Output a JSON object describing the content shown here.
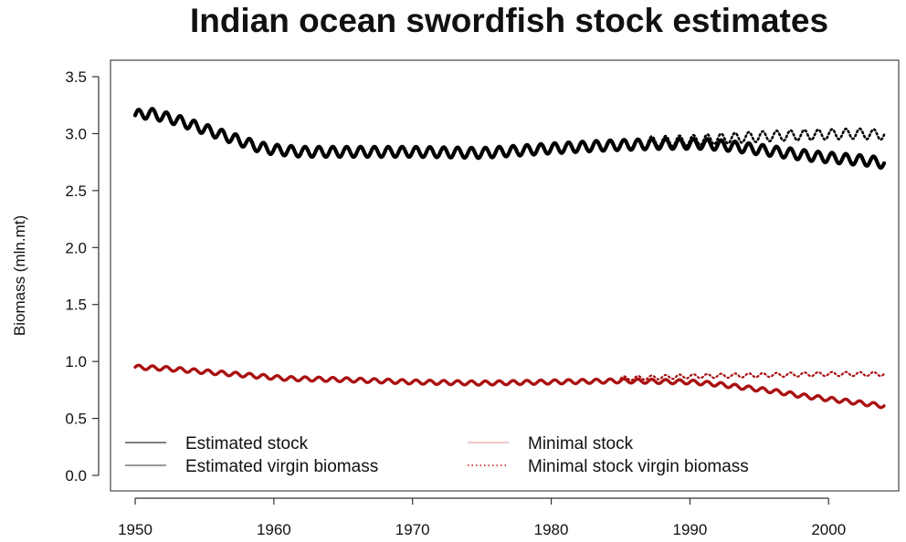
{
  "chart_data": {
    "type": "line",
    "title": "Indian ocean swordfish stock estimates",
    "xlabel": "",
    "ylabel": "Biomass (mln.mt)",
    "xlim": [
      1950,
      2004
    ],
    "ylim": [
      0.0,
      3.5
    ],
    "x_ticks": [
      1950,
      1960,
      1970,
      1980,
      1990,
      2000
    ],
    "y_ticks": [
      "0.0",
      "0.5",
      "1.0",
      "1.5",
      "2.0",
      "2.5",
      "3.0",
      "3.5"
    ],
    "grid": false,
    "legend_position": "bottom",
    "oscillation": {
      "amplitude_upper": 0.045,
      "amplitude_lower": 0.018,
      "cycles_per_year": 1
    },
    "series": [
      {
        "name": "Estimated stock",
        "color": "#000000",
        "style": "solid",
        "x": [
          1950,
          1951,
          1952,
          1953,
          1954,
          1955,
          1956,
          1957,
          1958,
          1959,
          1960,
          1962,
          1965,
          1970,
          1975,
          1980,
          1983,
          1985,
          1988,
          1991,
          1993,
          1995,
          1997,
          1999,
          2001,
          2003,
          2004
        ],
        "y": [
          3.16,
          3.18,
          3.15,
          3.12,
          3.08,
          3.04,
          3.0,
          2.96,
          2.92,
          2.88,
          2.86,
          2.84,
          2.84,
          2.84,
          2.83,
          2.87,
          2.89,
          2.9,
          2.91,
          2.91,
          2.89,
          2.86,
          2.83,
          2.8,
          2.78,
          2.76,
          2.74
        ]
      },
      {
        "name": "Estimated virgin biomass",
        "color": "#000000",
        "style": "dotted",
        "x": [
          1987,
          1990,
          1993,
          1996,
          1999,
          2002,
          2004
        ],
        "y": [
          2.93,
          2.94,
          2.96,
          2.98,
          2.99,
          3.0,
          2.99
        ]
      },
      {
        "name": "Minimal stock",
        "color": "#aa1111",
        "style": "solid",
        "x": [
          1950,
          1952,
          1955,
          1958,
          1961,
          1965,
          1970,
          1975,
          1980,
          1985,
          1990,
          1992,
          1994,
          1996,
          1998,
          2000,
          2002,
          2004
        ],
        "y": [
          0.95,
          0.94,
          0.91,
          0.88,
          0.85,
          0.84,
          0.82,
          0.81,
          0.82,
          0.83,
          0.82,
          0.8,
          0.77,
          0.74,
          0.7,
          0.67,
          0.64,
          0.61
        ]
      },
      {
        "name": "Minimal stock virgin biomass",
        "color": "#aa1111",
        "style": "dotted",
        "x": [
          1985,
          1990,
          1995,
          2000,
          2004
        ],
        "y": [
          0.85,
          0.87,
          0.88,
          0.89,
          0.89
        ]
      }
    ],
    "legend": [
      {
        "label": "Estimated stock",
        "color": "#555555",
        "style": "solid"
      },
      {
        "label": "Estimated virgin biomass",
        "color": "#777777",
        "style": "solid"
      },
      {
        "label": "Minimal stock",
        "color": "#e8b4b4",
        "style": "solid"
      },
      {
        "label": "Minimal stock virgin biomass",
        "color": "#cc3333",
        "style": "dotted"
      }
    ]
  }
}
